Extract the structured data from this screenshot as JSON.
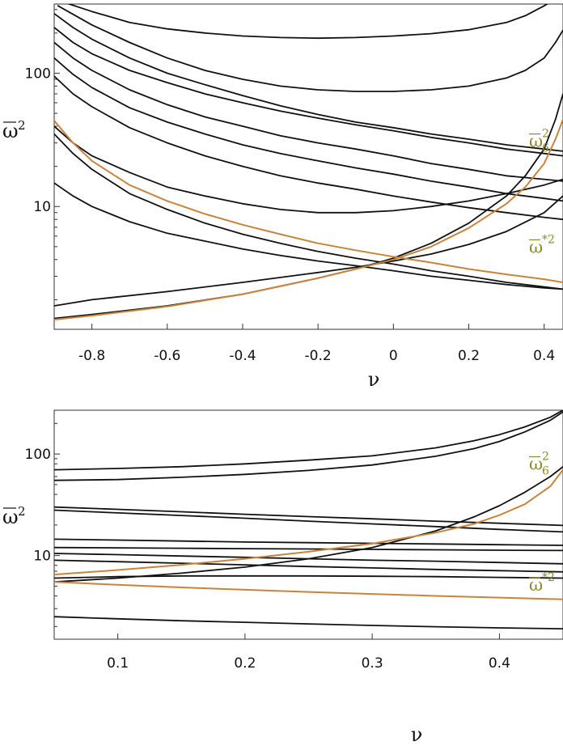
{
  "colors": {
    "curve": "#111111",
    "highlight": "#c8843a",
    "annotation": "#8a8a2a",
    "frame": "#333333"
  },
  "chart_data": [
    {
      "type": "line",
      "xlabel": "ν",
      "ylabel": {
        "main": "ω",
        "sup": "2"
      },
      "yscale": "log",
      "xlim": [
        -0.9,
        0.45
      ],
      "ylim": [
        1.2,
        330
      ],
      "x_ticks": [
        {
          "value": -0.8,
          "label": "-0.8"
        },
        {
          "value": -0.6,
          "label": "-0.6"
        },
        {
          "value": -0.4,
          "label": "-0.4"
        },
        {
          "value": -0.2,
          "label": "-0.2"
        },
        {
          "value": 0,
          "label": "0"
        },
        {
          "value": 0.2,
          "label": "0.2"
        },
        {
          "value": 0.4,
          "label": "0.4"
        }
      ],
      "y_ticks": [
        {
          "value": 10,
          "label": "10"
        },
        {
          "value": 100,
          "label": "100"
        }
      ],
      "annotations": [
        {
          "main": "ω",
          "sub": "6",
          "sup": "2",
          "x": 0.42,
          "y": 28
        },
        {
          "main": "ω",
          "sub": "",
          "sup": "*2",
          "x": 0.42,
          "y": 4.5
        }
      ],
      "series": [
        {
          "color": "curve",
          "x": [
            -0.89,
            -0.86,
            -0.8,
            -0.7,
            -0.6,
            -0.5,
            -0.4,
            -0.3,
            -0.2,
            -0.1,
            0.0,
            0.1,
            0.2,
            0.3,
            0.35,
            0.4,
            0.43,
            0.45
          ],
          "y": [
            360,
            330,
            290,
            240,
            215,
            200,
            190,
            185,
            183,
            185,
            190,
            198,
            212,
            240,
            270,
            320,
            360,
            380
          ]
        },
        {
          "color": "curve",
          "x": [
            -0.89,
            -0.8,
            -0.7,
            -0.6,
            -0.5,
            -0.4,
            -0.3,
            -0.2,
            -0.1,
            0.0,
            0.1,
            0.2,
            0.3,
            0.35,
            0.4,
            0.43,
            0.45
          ],
          "y": [
            320,
            230,
            170,
            130,
            105,
            90,
            80,
            75,
            73,
            73,
            75,
            80,
            92,
            105,
            130,
            170,
            210
          ]
        },
        {
          "color": "curve",
          "x": [
            -0.9,
            -0.85,
            -0.8,
            -0.7,
            -0.6,
            -0.5,
            -0.4,
            -0.3,
            -0.2,
            -0.1,
            0.0,
            0.1,
            0.2,
            0.3,
            0.4,
            0.45
          ],
          "y": [
            280,
            220,
            180,
            130,
            100,
            82,
            68,
            57,
            49,
            43,
            39,
            35,
            32,
            29,
            27,
            26
          ]
        },
        {
          "color": "curve",
          "x": [
            -0.9,
            -0.85,
            -0.8,
            -0.7,
            -0.6,
            -0.5,
            -0.4,
            -0.3,
            -0.2,
            -0.1,
            0.0,
            0.1,
            0.2,
            0.3,
            0.4,
            0.45
          ],
          "y": [
            220,
            170,
            140,
            105,
            85,
            70,
            60,
            52,
            46,
            41,
            37,
            33,
            30,
            27,
            25,
            24
          ]
        },
        {
          "color": "curve",
          "x": [
            -0.9,
            -0.85,
            -0.8,
            -0.7,
            -0.6,
            -0.5,
            -0.4,
            -0.3,
            -0.2,
            -0.1,
            0.0,
            0.1,
            0.2,
            0.3,
            0.4,
            0.45
          ],
          "y": [
            170,
            130,
            105,
            75,
            58,
            47,
            40,
            34,
            30,
            27,
            24,
            21,
            19,
            17,
            16,
            15.5
          ]
        },
        {
          "color": "curve",
          "x": [
            -0.9,
            -0.85,
            -0.8,
            -0.7,
            -0.6,
            -0.5,
            -0.4,
            -0.3,
            -0.2,
            -0.1,
            0.0,
            0.1,
            0.2,
            0.3,
            0.4,
            0.45
          ],
          "y": [
            130,
            98,
            78,
            55,
            43,
            35,
            29,
            25,
            22,
            19.5,
            17.5,
            15.5,
            14,
            12.5,
            11.5,
            11
          ]
        },
        {
          "color": "curve",
          "x": [
            -0.9,
            -0.85,
            -0.8,
            -0.7,
            -0.6,
            -0.5,
            -0.4,
            -0.3,
            -0.2,
            -0.1,
            0.0,
            0.1,
            0.2,
            0.3,
            0.4,
            0.45
          ],
          "y": [
            95,
            70,
            56,
            39,
            30,
            24,
            20,
            17,
            15,
            13.5,
            12,
            10.8,
            9.8,
            9,
            8.3,
            8
          ]
        },
        {
          "color": "curve",
          "x": [
            -0.9,
            -0.85,
            -0.8,
            -0.7,
            -0.6,
            -0.5,
            -0.4,
            -0.3,
            -0.2,
            -0.1,
            0.0,
            0.1,
            0.2,
            0.3,
            0.4,
            0.45
          ],
          "y": [
            40,
            30,
            24,
            18,
            14,
            12,
            10.5,
            9.5,
            9,
            9,
            9.3,
            10,
            11,
            12.5,
            14.5,
            16
          ]
        },
        {
          "color": "curve",
          "x": [
            -0.9,
            -0.85,
            -0.8,
            -0.7,
            -0.6,
            -0.5,
            -0.4,
            -0.3,
            -0.2,
            -0.1,
            0.0,
            0.1,
            0.2,
            0.3,
            0.4,
            0.45
          ],
          "y": [
            35,
            25,
            19,
            12.5,
            9.5,
            7.5,
            6.2,
            5.3,
            4.6,
            4.1,
            3.7,
            3.3,
            3.0,
            2.7,
            2.5,
            2.4
          ]
        },
        {
          "color": "curve",
          "x": [
            -0.9,
            -0.85,
            -0.8,
            -0.7,
            -0.6,
            -0.5,
            -0.4,
            -0.3,
            -0.2,
            -0.1,
            0.0,
            0.1,
            0.2,
            0.3,
            0.4,
            0.45
          ],
          "y": [
            15,
            12,
            10,
            7.7,
            6.3,
            5.5,
            4.8,
            4.3,
            3.9,
            3.6,
            3.3,
            3.0,
            2.8,
            2.6,
            2.45,
            2.4
          ]
        },
        {
          "color": "curve",
          "x": [
            -0.9,
            -0.8,
            -0.6,
            -0.4,
            -0.2,
            -0.1,
            0.0,
            0.1,
            0.2,
            0.3,
            0.4,
            0.45
          ],
          "y": [
            1.8,
            2.0,
            2.3,
            2.7,
            3.2,
            3.5,
            3.9,
            4.4,
            5.2,
            6.5,
            9,
            12
          ]
        },
        {
          "color": "curve",
          "x": [
            -0.9,
            -0.8,
            -0.6,
            -0.4,
            -0.2,
            -0.1,
            0.0,
            0.1,
            0.2,
            0.3,
            0.35,
            0.4,
            0.43,
            0.45
          ],
          "y": [
            1.45,
            1.55,
            1.8,
            2.2,
            2.9,
            3.4,
            4.1,
            5.3,
            7.5,
            12,
            17,
            27,
            45,
            70
          ]
        },
        {
          "color": "highlight",
          "x": [
            -0.9,
            -0.85,
            -0.8,
            -0.7,
            -0.6,
            -0.5,
            -0.4,
            -0.3,
            -0.2,
            -0.1,
            0.0,
            0.1,
            0.2,
            0.3,
            0.4,
            0.45
          ],
          "y": [
            44,
            30,
            22,
            14.5,
            11,
            8.8,
            7.3,
            6.2,
            5.3,
            4.7,
            4.2,
            3.8,
            3.4,
            3.1,
            2.85,
            2.7
          ]
        },
        {
          "color": "highlight",
          "x": [
            -0.9,
            -0.8,
            -0.6,
            -0.4,
            -0.2,
            -0.1,
            0.0,
            0.1,
            0.2,
            0.3,
            0.35,
            0.4,
            0.43,
            0.45
          ],
          "y": [
            1.42,
            1.52,
            1.78,
            2.2,
            2.9,
            3.4,
            4.0,
            5.0,
            6.9,
            10.5,
            14,
            21,
            32,
            45
          ]
        }
      ]
    },
    {
      "type": "line",
      "xlabel": "ν",
      "ylabel": {
        "main": "ω",
        "sup": "2"
      },
      "yscale": "log",
      "xlim": [
        0.05,
        0.45
      ],
      "ylim": [
        1.5,
        270
      ],
      "x_ticks": [
        {
          "value": 0.1,
          "label": "0.1"
        },
        {
          "value": 0.2,
          "label": "0.2"
        },
        {
          "value": 0.3,
          "label": "0.3"
        },
        {
          "value": 0.4,
          "label": "0.4"
        }
      ],
      "y_ticks": [
        {
          "value": 10,
          "label": "10"
        },
        {
          "value": 100,
          "label": "100"
        }
      ],
      "annotations": [
        {
          "main": "ω",
          "sub": "6",
          "sup": "2",
          "x": 0.43,
          "y": 70
        },
        {
          "main": "ω",
          "sub": "",
          "sup": "*2",
          "x": 0.43,
          "y": 4.5
        }
      ],
      "series": [
        {
          "color": "curve",
          "x": [
            0.05,
            0.1,
            0.15,
            0.2,
            0.25,
            0.3,
            0.35,
            0.38,
            0.4,
            0.42,
            0.44,
            0.45
          ],
          "y": [
            70,
            72,
            75,
            80,
            87,
            96,
            115,
            135,
            155,
            185,
            230,
            270
          ]
        },
        {
          "color": "curve",
          "x": [
            0.05,
            0.1,
            0.15,
            0.2,
            0.25,
            0.3,
            0.35,
            0.38,
            0.4,
            0.42,
            0.44,
            0.45
          ],
          "y": [
            55,
            56,
            59,
            63,
            69,
            78,
            95,
            113,
            133,
            165,
            215,
            260
          ]
        },
        {
          "color": "curve",
          "x": [
            0.05,
            0.1,
            0.15,
            0.2,
            0.25,
            0.3,
            0.35,
            0.4,
            0.45
          ],
          "y": [
            30,
            28.5,
            27,
            25.5,
            24.2,
            23,
            21.8,
            20.8,
            19.8
          ]
        },
        {
          "color": "curve",
          "x": [
            0.05,
            0.1,
            0.15,
            0.2,
            0.25,
            0.3,
            0.35,
            0.4,
            0.45
          ],
          "y": [
            28,
            26.3,
            24.8,
            23.3,
            21.8,
            20.5,
            19.3,
            18.1,
            17.1
          ]
        },
        {
          "color": "curve",
          "x": [
            0.05,
            0.1,
            0.15,
            0.2,
            0.25,
            0.3,
            0.35,
            0.4,
            0.45
          ],
          "y": [
            14.5,
            14.2,
            13.9,
            13.6,
            13.4,
            13.2,
            13.0,
            12.8,
            12.6
          ]
        },
        {
          "color": "curve",
          "x": [
            0.05,
            0.1,
            0.15,
            0.2,
            0.25,
            0.3,
            0.35,
            0.4,
            0.45
          ],
          "y": [
            12,
            11.9,
            11.8,
            11.7,
            11.6,
            11.5,
            11.4,
            11.3,
            11.2
          ]
        },
        {
          "color": "curve",
          "x": [
            0.05,
            0.1,
            0.15,
            0.2,
            0.25,
            0.3,
            0.35,
            0.4,
            0.45
          ],
          "y": [
            10.5,
            10.2,
            9.9,
            9.6,
            9.3,
            9.0,
            8.8,
            8.55,
            8.3
          ]
        },
        {
          "color": "curve",
          "x": [
            0.05,
            0.1,
            0.15,
            0.2,
            0.25,
            0.3,
            0.35,
            0.4,
            0.45
          ],
          "y": [
            9,
            8.7,
            8.4,
            8.1,
            7.8,
            7.55,
            7.3,
            7.1,
            6.9
          ]
        },
        {
          "color": "curve",
          "x": [
            0.05,
            0.1,
            0.15,
            0.2,
            0.25,
            0.3,
            0.35,
            0.4,
            0.45
          ],
          "y": [
            6,
            6.2,
            6.3,
            6.3,
            6.3,
            6.25,
            6.2,
            6.1,
            6.0
          ]
        },
        {
          "color": "curve",
          "x": [
            0.05,
            0.1,
            0.15,
            0.2,
            0.25,
            0.3,
            0.35,
            0.38,
            0.4,
            0.42,
            0.44,
            0.45
          ],
          "y": [
            5.5,
            6.0,
            6.7,
            7.7,
            9.3,
            12,
            17.5,
            24,
            31,
            42,
            60,
            75
          ]
        },
        {
          "color": "curve",
          "x": [
            0.05,
            0.1,
            0.15,
            0.2,
            0.25,
            0.3,
            0.35,
            0.4,
            0.45
          ],
          "y": [
            2.5,
            2.38,
            2.28,
            2.2,
            2.12,
            2.05,
            1.99,
            1.94,
            1.9
          ]
        },
        {
          "color": "highlight",
          "x": [
            0.05,
            0.1,
            0.15,
            0.2,
            0.25,
            0.3,
            0.35,
            0.4,
            0.45
          ],
          "y": [
            5.5,
            5.15,
            4.85,
            4.6,
            4.38,
            4.18,
            4.0,
            3.85,
            3.7
          ]
        },
        {
          "color": "highlight",
          "x": [
            0.05,
            0.1,
            0.15,
            0.2,
            0.25,
            0.3,
            0.35,
            0.38,
            0.4,
            0.42,
            0.44,
            0.45
          ],
          "y": [
            6.5,
            7.2,
            8.1,
            9.3,
            10.9,
            13.1,
            16.8,
            20.5,
            25,
            32,
            48,
            70
          ]
        }
      ]
    }
  ]
}
